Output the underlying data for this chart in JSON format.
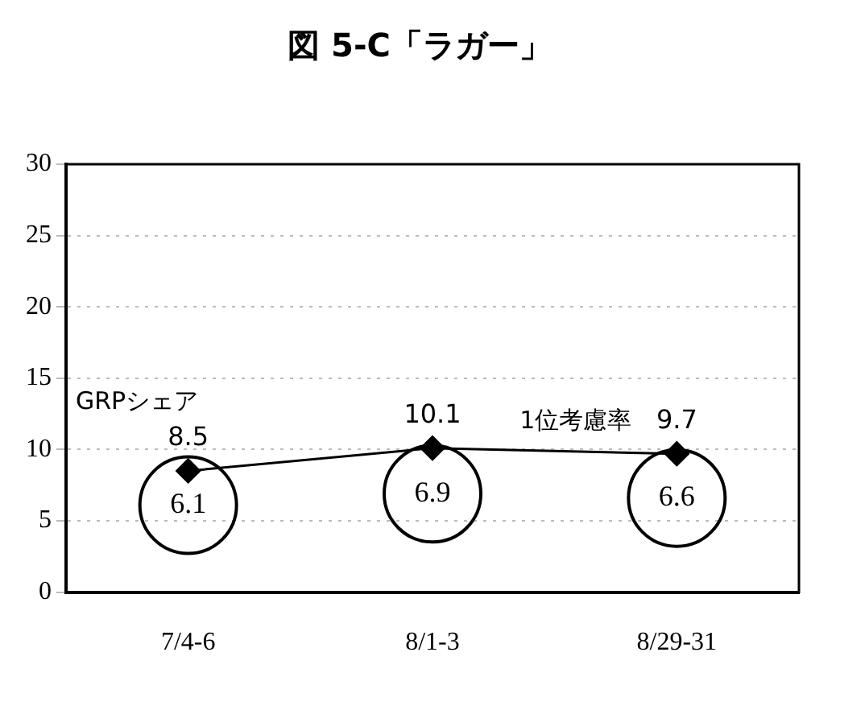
{
  "chart_data": {
    "type": "line",
    "title": "図 5-C「ラガー」",
    "categories": [
      "7/4-6",
      "8/1-3",
      "8/29-31"
    ],
    "series": [
      {
        "name": "GRPシェア",
        "type": "bubble",
        "color": "#000000",
        "values": [
          6.1,
          6.9,
          6.6
        ],
        "sizes": [
          1,
          1,
          1
        ]
      },
      {
        "name": "1位考慮率",
        "color": "#000000",
        "marker": "diamond",
        "values": [
          8.5,
          10.1,
          9.7
        ]
      }
    ],
    "ylim": [
      0,
      30
    ],
    "yticks": [
      0,
      5,
      10,
      15,
      20,
      25,
      30
    ],
    "grid": "y",
    "line_style": "solid",
    "data_labels": true,
    "legend": false
  }
}
